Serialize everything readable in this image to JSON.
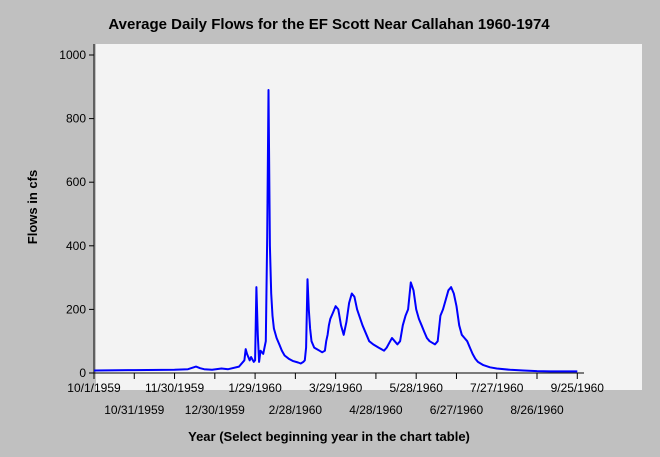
{
  "chart_data": {
    "type": "line",
    "title": "Average Daily Flows for the EF Scott Near Callahan 1960-1974",
    "xlabel": "Year (Select beginning year in the chart table)",
    "ylabel": "Flows in cfs",
    "ylim": [
      0,
      1000
    ],
    "yticks": [
      0,
      200,
      400,
      600,
      800,
      1000
    ],
    "xlim_day": [
      0,
      365
    ],
    "xticks_upper": [
      {
        "day": 0,
        "label": "10/1/1959"
      },
      {
        "day": 60,
        "label": "11/30/1959"
      },
      {
        "day": 120,
        "label": "1/29/1960"
      },
      {
        "day": 180,
        "label": "3/29/1960"
      },
      {
        "day": 240,
        "label": "5/28/1960"
      },
      {
        "day": 300,
        "label": "7/27/1960"
      },
      {
        "day": 360,
        "label": "9/25/1960"
      }
    ],
    "xticks_lower": [
      {
        "day": 30,
        "label": "10/31/1959"
      },
      {
        "day": 90,
        "label": "12/30/1959"
      },
      {
        "day": 150,
        "label": "2/28/1960"
      },
      {
        "day": 210,
        "label": "4/28/1960"
      },
      {
        "day": 270,
        "label": "6/27/1960"
      },
      {
        "day": 330,
        "label": "8/26/1960"
      }
    ],
    "grid": false,
    "line_color": "#0000ff",
    "series": [
      {
        "x": [
          0,
          30,
          60,
          70,
          76,
          79,
          82,
          88,
          95,
          100,
          108,
          112,
          113,
          114,
          116,
          117,
          119,
          120,
          121,
          122,
          123,
          124,
          126,
          127,
          128,
          129,
          130,
          131,
          132,
          133,
          134,
          136,
          138,
          140,
          142,
          145,
          148,
          152,
          154,
          156,
          157,
          158,
          159,
          160,
          161,
          162,
          164,
          166,
          168,
          170,
          172,
          173,
          174,
          175,
          176,
          178,
          180,
          182,
          184,
          186,
          188,
          190,
          192,
          194,
          196,
          200,
          205,
          208,
          210,
          212,
          214,
          216,
          218,
          220,
          222,
          224,
          226,
          228,
          230,
          232,
          234,
          236,
          238,
          240,
          242,
          244,
          246,
          248,
          250,
          252,
          254,
          256,
          258,
          260,
          262,
          264,
          266,
          268,
          270,
          272,
          274,
          276,
          278,
          280,
          282,
          284,
          286,
          290,
          295,
          300,
          310,
          320,
          330,
          340,
          350,
          360
        ],
        "y": [
          8,
          9,
          10,
          12,
          20,
          15,
          12,
          10,
          14,
          12,
          20,
          40,
          75,
          60,
          40,
          50,
          35,
          40,
          270,
          120,
          35,
          70,
          60,
          80,
          100,
          430,
          890,
          400,
          250,
          180,
          140,
          110,
          90,
          70,
          55,
          45,
          38,
          33,
          30,
          35,
          40,
          80,
          295,
          200,
          140,
          100,
          80,
          75,
          70,
          65,
          70,
          100,
          120,
          150,
          170,
          190,
          210,
          200,
          150,
          120,
          160,
          220,
          250,
          240,
          200,
          150,
          100,
          90,
          85,
          80,
          75,
          70,
          80,
          95,
          110,
          100,
          90,
          100,
          150,
          180,
          200,
          285,
          260,
          200,
          170,
          150,
          130,
          110,
          100,
          95,
          90,
          100,
          180,
          200,
          230,
          260,
          270,
          250,
          210,
          150,
          120,
          110,
          100,
          80,
          60,
          45,
          35,
          25,
          18,
          14,
          10,
          8,
          6,
          5,
          5,
          5
        ]
      }
    ]
  }
}
